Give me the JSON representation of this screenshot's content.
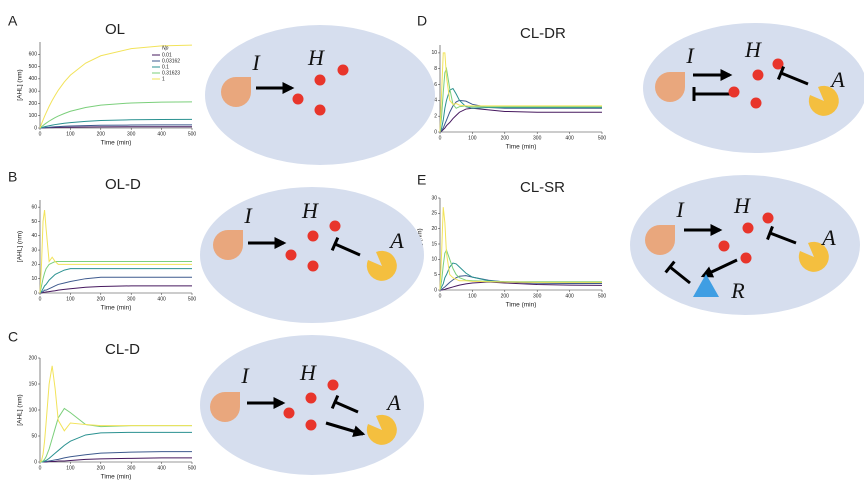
{
  "chart_data": [
    {
      "type": "line",
      "panel": "A",
      "title": "OL",
      "x_label": "Time (min)",
      "y_label": "[AHL] (nm)",
      "xlim": [
        0,
        500
      ],
      "xticks": [
        0,
        100,
        200,
        300,
        400,
        500
      ],
      "ylim": [
        0,
        700
      ],
      "yticks": [
        0,
        100,
        200,
        300,
        400,
        500,
        600
      ],
      "legend": "right",
      "legend_title": "Np",
      "x": [
        0,
        5,
        10,
        15,
        20,
        30,
        40,
        50,
        60,
        80,
        100,
        150,
        200,
        300,
        400,
        500
      ],
      "series": [
        {
          "name": "0.01",
          "color": "#46185e",
          "values": [
            0,
            0,
            1,
            1,
            2,
            3,
            3,
            4,
            5,
            6,
            6,
            8,
            9,
            10,
            10,
            10
          ]
        },
        {
          "name": "0.03162",
          "color": "#3e5a8e",
          "values": [
            0,
            1,
            2,
            3,
            5,
            6,
            8,
            10,
            11,
            14,
            16,
            19,
            22,
            24,
            25,
            25
          ]
        },
        {
          "name": "0.1",
          "color": "#2a9190",
          "values": [
            0,
            3,
            7,
            10,
            13,
            18,
            23,
            28,
            32,
            39,
            44,
            54,
            61,
            67,
            69,
            70
          ]
        },
        {
          "name": "0.31623",
          "color": "#7bcf7b",
          "values": [
            0,
            11,
            20,
            30,
            39,
            56,
            71,
            85,
            97,
            118,
            136,
            167,
            186,
            204,
            211,
            213
          ]
        },
        {
          "name": "1",
          "color": "#f2e35a",
          "values": [
            0,
            33,
            65,
            95,
            123,
            176,
            224,
            267,
            307,
            375,
            430,
            528,
            588,
            646,
            668,
            675
          ]
        }
      ]
    },
    {
      "type": "line",
      "panel": "B",
      "title": "OL-D",
      "x_label": "Time (min)",
      "y_label": "[AHL] (nm)",
      "xlim": [
        0,
        500
      ],
      "xticks": [
        0,
        100,
        200,
        300,
        400,
        500
      ],
      "ylim": [
        0,
        65
      ],
      "yticks": [
        0,
        10,
        20,
        30,
        40,
        50,
        60
      ],
      "x": [
        0,
        5,
        10,
        15,
        20,
        30,
        40,
        50,
        60,
        80,
        100,
        150,
        200,
        300,
        400,
        500
      ],
      "series": [
        {
          "name": "0.01",
          "color": "#46185e",
          "values": [
            0,
            0,
            0.3,
            0.5,
            0.7,
            1,
            1.3,
            1.6,
            2,
            2.5,
            3,
            4,
            4.5,
            5,
            5,
            5
          ]
        },
        {
          "name": "0.03162",
          "color": "#3e5a8e",
          "values": [
            0,
            0.5,
            1,
            2,
            2,
            3,
            4,
            5,
            6,
            7,
            8,
            10,
            11,
            11,
            11,
            11
          ]
        },
        {
          "name": "0.1",
          "color": "#2a9190",
          "values": [
            0,
            1,
            3,
            5,
            6,
            9,
            11,
            13,
            14,
            16,
            17,
            17,
            17,
            17,
            17,
            17
          ]
        },
        {
          "name": "0.31623",
          "color": "#7bcf7b",
          "values": [
            0,
            5,
            10,
            14,
            17,
            20,
            21,
            22,
            22,
            22,
            22,
            22,
            22,
            22,
            22,
            22
          ]
        },
        {
          "name": "1",
          "color": "#f2e35a",
          "values": [
            0,
            20,
            50,
            58,
            45,
            22,
            25,
            22,
            20,
            20,
            20,
            20,
            20,
            20,
            20,
            20
          ]
        }
      ]
    },
    {
      "type": "line",
      "panel": "C",
      "title": "CL-D",
      "x_label": "Time (min)",
      "y_label": "[AHL] (nm)",
      "xlim": [
        0,
        500
      ],
      "xticks": [
        0,
        100,
        200,
        300,
        400,
        500
      ],
      "ylim": [
        0,
        200
      ],
      "yticks": [
        0,
        50,
        100,
        150,
        200
      ],
      "x": [
        0,
        5,
        10,
        15,
        20,
        30,
        40,
        50,
        60,
        80,
        100,
        150,
        200,
        300,
        400,
        500
      ],
      "series": [
        {
          "name": "0.01",
          "color": "#46185e",
          "values": [
            0,
            0,
            0,
            0,
            0,
            1,
            1,
            1,
            2,
            2,
            3,
            5,
            6,
            7,
            8,
            8
          ]
        },
        {
          "name": "0.03162",
          "color": "#3e5a8e",
          "values": [
            0,
            0,
            0,
            1,
            1,
            2,
            3,
            4,
            5,
            8,
            10,
            14,
            17,
            19,
            20,
            20
          ]
        },
        {
          "name": "0.1",
          "color": "#2a9190",
          "values": [
            0,
            0,
            1,
            2,
            3,
            7,
            12,
            17,
            22,
            32,
            40,
            52,
            56,
            57,
            57,
            57
          ]
        },
        {
          "name": "0.31623",
          "color": "#7bcf7b",
          "values": [
            0,
            0,
            2,
            5,
            10,
            25,
            45,
            65,
            85,
            103,
            95,
            72,
            68,
            70,
            70,
            70
          ]
        },
        {
          "name": "1",
          "color": "#f2e35a",
          "values": [
            0,
            3,
            15,
            40,
            75,
            150,
            185,
            140,
            80,
            60,
            75,
            72,
            70,
            70,
            70,
            70
          ]
        }
      ]
    },
    {
      "type": "line",
      "panel": "D",
      "title": "CL-DR",
      "x_label": "Time (min)",
      "y_label": "[AHL] (nm)",
      "xlim": [
        0,
        500
      ],
      "xticks": [
        0,
        100,
        200,
        300,
        400,
        500
      ],
      "ylim": [
        0,
        11
      ],
      "yticks": [
        0,
        2,
        4,
        6,
        8,
        10
      ],
      "x": [
        0,
        5,
        10,
        15,
        20,
        30,
        40,
        50,
        60,
        80,
        100,
        150,
        200,
        300,
        400,
        500
      ],
      "series": [
        {
          "name": "0.01",
          "color": "#46185e",
          "values": [
            0,
            0.1,
            0.3,
            0.5,
            0.8,
            1.2,
            1.7,
            2.1,
            2.5,
            2.9,
            3.0,
            2.8,
            2.6,
            2.5,
            2.5,
            2.5
          ]
        },
        {
          "name": "0.03162",
          "color": "#3e5a8e",
          "values": [
            0,
            0.2,
            0.5,
            1,
            1.5,
            2.5,
            3.3,
            3.8,
            4,
            3.9,
            3.5,
            3.1,
            3,
            3,
            3,
            3
          ]
        },
        {
          "name": "0.1",
          "color": "#2a9190",
          "values": [
            0,
            0.5,
            1.5,
            3,
            4,
            5.3,
            5.5,
            4.8,
            4,
            3.2,
            3,
            3.1,
            3.1,
            3.1,
            3.1,
            3.1
          ]
        },
        {
          "name": "0.31623",
          "color": "#7bcf7b",
          "values": [
            0,
            2,
            5,
            7.5,
            8,
            5.5,
            3.5,
            3,
            3.2,
            3.3,
            3.2,
            3.2,
            3.2,
            3.2,
            3.2,
            3.2
          ]
        },
        {
          "name": "1",
          "color": "#f2e35a",
          "values": [
            0,
            5,
            10,
            10,
            7,
            4,
            3.5,
            3.6,
            3.4,
            3.3,
            3.3,
            3.3,
            3.3,
            3.3,
            3.3,
            3.3
          ]
        }
      ]
    },
    {
      "type": "line",
      "panel": "E",
      "title": "CL-SR",
      "x_label": "Time (min)",
      "y_label": "[AHL] (nm)",
      "xlim": [
        0,
        500
      ],
      "xticks": [
        0,
        100,
        200,
        300,
        400,
        500
      ],
      "ylim": [
        0,
        30
      ],
      "yticks": [
        0,
        5,
        10,
        15,
        20,
        25,
        30
      ],
      "x": [
        0,
        5,
        10,
        15,
        20,
        30,
        40,
        50,
        60,
        80,
        100,
        150,
        200,
        300,
        400,
        500
      ],
      "series": [
        {
          "name": "0.01",
          "color": "#46185e",
          "values": [
            0,
            0,
            0.1,
            0.2,
            0.4,
            0.7,
            1,
            1.3,
            1.6,
            2,
            2.3,
            2.6,
            2.3,
            1.8,
            1.6,
            1.5
          ]
        },
        {
          "name": "0.03162",
          "color": "#3e5a8e",
          "values": [
            0,
            0.2,
            0.6,
            1,
            1.5,
            2.5,
            3.3,
            4,
            4.5,
            4.7,
            4.2,
            3.2,
            2.6,
            2.2,
            2.1,
            2.1
          ]
        },
        {
          "name": "0.1",
          "color": "#2a9190",
          "values": [
            0,
            1,
            2,
            4,
            5,
            7.5,
            8.8,
            8.5,
            7.5,
            5.5,
            4.2,
            3,
            2.7,
            2.5,
            2.5,
            2.5
          ]
        },
        {
          "name": "0.31623",
          "color": "#7bcf7b",
          "values": [
            0,
            3,
            8,
            12,
            13,
            10,
            7,
            5,
            4,
            3.2,
            3,
            2.8,
            2.7,
            2.7,
            2.7,
            2.7
          ]
        },
        {
          "name": "1",
          "color": "#f2e35a",
          "values": [
            0,
            12,
            27,
            22,
            12,
            5,
            4,
            3.5,
            3,
            3,
            2.8,
            2.7,
            2.6,
            2.5,
            2.5,
            2.5
          ]
        }
      ]
    }
  ],
  "diagrams": [
    {
      "labels": [
        "I",
        "H"
      ]
    },
    {
      "labels": [
        "I",
        "H",
        "A"
      ]
    },
    {
      "labels": [
        "I",
        "H",
        "A"
      ]
    },
    {
      "labels": [
        "I",
        "H",
        "A"
      ]
    },
    {
      "labels": [
        "I",
        "H",
        "A",
        "R"
      ]
    }
  ]
}
